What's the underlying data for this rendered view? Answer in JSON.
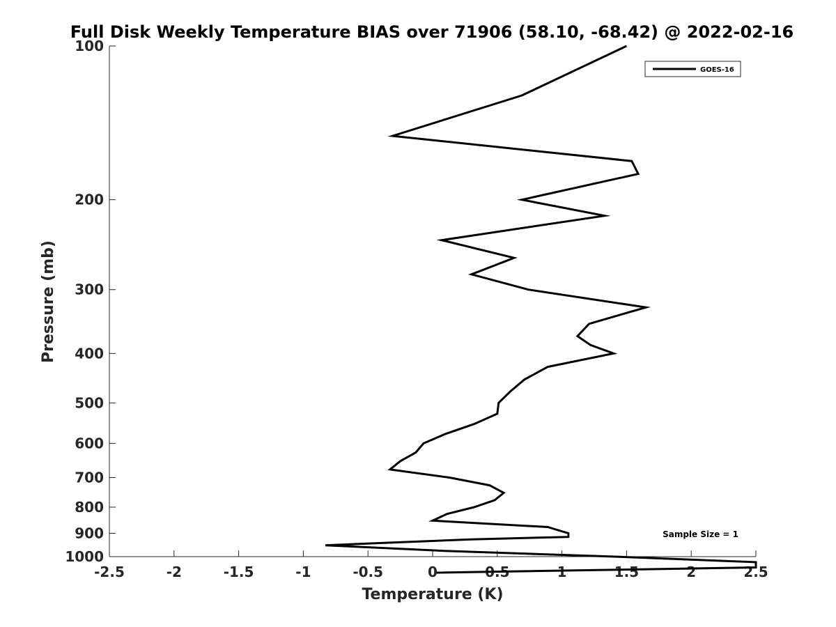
{
  "chart_data": {
    "type": "line",
    "title": "Full Disk Weekly Temperature BIAS over 71906 (58.10, -68.42) @ 2022-02-16",
    "xlabel": "Temperature (K)",
    "ylabel": "Pressure (mb)",
    "xlim": [
      -2.5,
      2.5
    ],
    "ylim": [
      100,
      1000
    ],
    "y_scale": "log",
    "y_reversed": true,
    "x_ticks": [
      -2.5,
      -2,
      -1.5,
      -1,
      -0.5,
      0,
      0.5,
      1,
      1.5,
      2,
      2.5
    ],
    "x_tick_labels": [
      "-2.5",
      "-2",
      "-1.5",
      "-1",
      "-0.5",
      "0",
      "0.5",
      "1",
      "1.5",
      "2",
      "2.5"
    ],
    "y_ticks": [
      100,
      200,
      300,
      400,
      500,
      600,
      700,
      800,
      900,
      1000
    ],
    "y_tick_labels": [
      "100",
      "200",
      "300",
      "400",
      "500",
      "600",
      "700",
      "800",
      "900",
      "1000"
    ],
    "grid": false,
    "legend_position": "top-right",
    "series": [
      {
        "name": "GOES-16",
        "color": "#000000",
        "x": [
          1.5,
          0.69,
          -0.31,
          1.54,
          1.59,
          0.69,
          1.33,
          0.07,
          0.63,
          0.3,
          0.74,
          1.65,
          1.21,
          1.12,
          1.22,
          1.4,
          0.89,
          0.71,
          0.6,
          0.51,
          0.5,
          0.32,
          0.1,
          -0.07,
          -0.13,
          -0.25,
          -0.33,
          0.13,
          0.44,
          0.55,
          0.48,
          0.32,
          0.11,
          0.0,
          0.89,
          1.05,
          1.05,
          0.3,
          -0.83,
          0.11,
          1.41,
          2.5,
          2.5,
          0.03
        ],
        "y": [
          100,
          125,
          150,
          168,
          178,
          200,
          215,
          240,
          260,
          280,
          300,
          325,
          350,
          370,
          385,
          400,
          425,
          450,
          475,
          500,
          525,
          550,
          575,
          600,
          625,
          650,
          675,
          700,
          725,
          750,
          775,
          800,
          825,
          850,
          875,
          900,
          915,
          925,
          950,
          975,
          1000,
          1025,
          1050,
          1075
        ]
      }
    ],
    "annotations": [
      {
        "text": "Sample Size = 1",
        "position": "bottom-right"
      }
    ]
  }
}
